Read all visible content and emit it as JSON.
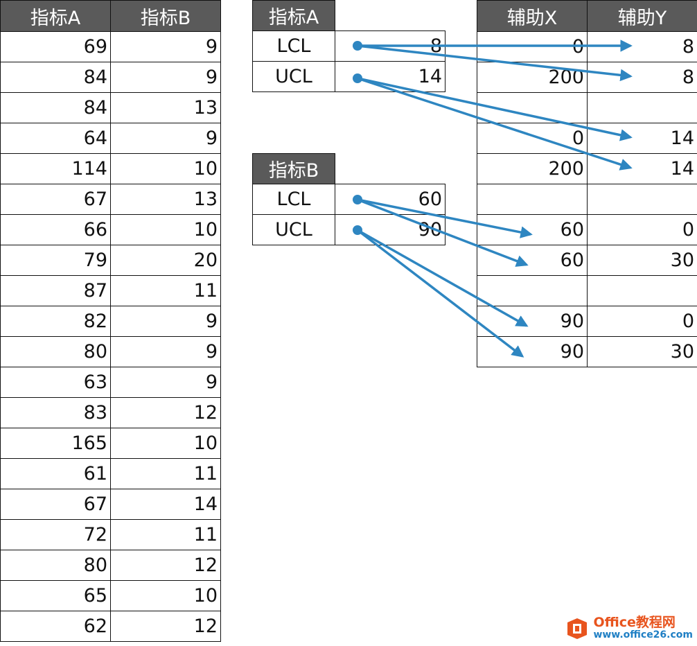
{
  "main_table": {
    "headers": [
      "指标A",
      "指标B"
    ],
    "rows": [
      [
        "69",
        "9"
      ],
      [
        "84",
        "9"
      ],
      [
        "84",
        "13"
      ],
      [
        "64",
        "9"
      ],
      [
        "114",
        "10"
      ],
      [
        "67",
        "13"
      ],
      [
        "66",
        "10"
      ],
      [
        "79",
        "20"
      ],
      [
        "87",
        "11"
      ],
      [
        "82",
        "9"
      ],
      [
        "80",
        "9"
      ],
      [
        "63",
        "9"
      ],
      [
        "83",
        "12"
      ],
      [
        "165",
        "10"
      ],
      [
        "61",
        "11"
      ],
      [
        "67",
        "14"
      ],
      [
        "72",
        "11"
      ],
      [
        "80",
        "12"
      ],
      [
        "65",
        "10"
      ],
      [
        "62",
        "12"
      ]
    ]
  },
  "indicator_a": {
    "header": "指标A",
    "rows": [
      {
        "label": "LCL",
        "value": "8"
      },
      {
        "label": "UCL",
        "value": "14"
      }
    ]
  },
  "indicator_b": {
    "header": "指标B",
    "rows": [
      {
        "label": "LCL",
        "value": "60"
      },
      {
        "label": "UCL",
        "value": "90"
      }
    ]
  },
  "helper_table": {
    "headers": [
      "辅助X",
      "辅助Y"
    ],
    "rows": [
      [
        "0",
        "8"
      ],
      [
        "200",
        "8"
      ],
      [
        "",
        ""
      ],
      [
        "0",
        "14"
      ],
      [
        "200",
        "14"
      ],
      [
        "",
        ""
      ],
      [
        "60",
        "0"
      ],
      [
        "60",
        "30"
      ],
      [
        "",
        ""
      ],
      [
        "90",
        "0"
      ],
      [
        "90",
        "30"
      ]
    ]
  },
  "arrow_color": "#2e86c1",
  "arrows": [
    {
      "from": "indicator_a.LCL",
      "to": "helper_table.row0.辅助Y"
    },
    {
      "from": "indicator_a.LCL",
      "to": "helper_table.row1.辅助Y"
    },
    {
      "from": "indicator_a.UCL",
      "to": "helper_table.row3.辅助Y"
    },
    {
      "from": "indicator_a.UCL",
      "to": "helper_table.row4.辅助Y"
    },
    {
      "from": "indicator_b.LCL",
      "to": "helper_table.row6.辅助X"
    },
    {
      "from": "indicator_b.LCL",
      "to": "helper_table.row7.辅助X"
    },
    {
      "from": "indicator_b.UCL",
      "to": "helper_table.row9.辅助X"
    },
    {
      "from": "indicator_b.UCL",
      "to": "helper_table.row10.辅助X"
    }
  ],
  "watermark": {
    "title": "Office教程网",
    "url": "www.office26.com",
    "logo_icon": "office-logo-icon",
    "logo_color": "#e8541e"
  }
}
